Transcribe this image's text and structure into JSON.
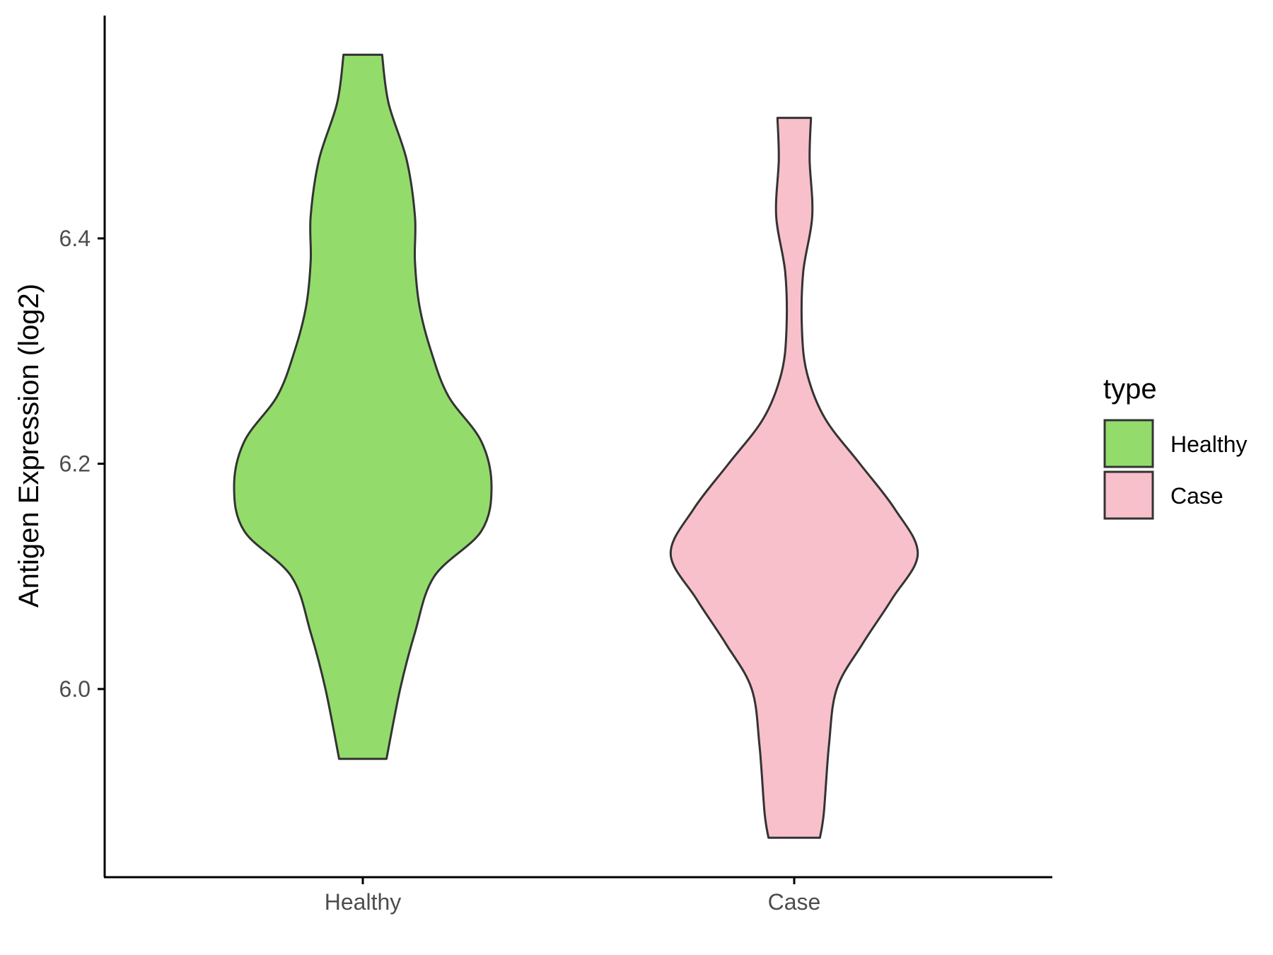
{
  "chart_data": {
    "type": "violin",
    "categories": [
      "Healthy",
      "Case"
    ],
    "ylabel": "Antigen Expression (log2)",
    "xlabel": "",
    "y_ticks": [
      6.0,
      6.2,
      6.4
    ],
    "ylim": [
      5.83,
      6.6
    ],
    "grid": false,
    "legend": {
      "title": "type",
      "position": "right",
      "entries": [
        "Healthy",
        "Case"
      ]
    },
    "colors": {
      "Healthy": "#93dc6b",
      "Case": "#f8c0cb",
      "outline": "#333333"
    },
    "series": [
      {
        "name": "Healthy",
        "min": 5.938,
        "max": 6.563,
        "density": [
          [
            5.938,
            0.184
          ],
          [
            6.0,
            0.29
          ],
          [
            6.05,
            0.405
          ],
          [
            6.1,
            0.555
          ],
          [
            6.14,
            0.92
          ],
          [
            6.18,
            1.0
          ],
          [
            6.22,
            0.92
          ],
          [
            6.26,
            0.665
          ],
          [
            6.3,
            0.53
          ],
          [
            6.34,
            0.44
          ],
          [
            6.38,
            0.405
          ],
          [
            6.42,
            0.405
          ],
          [
            6.47,
            0.34
          ],
          [
            6.52,
            0.2
          ],
          [
            6.563,
            0.15
          ]
        ]
      },
      {
        "name": "Case",
        "min": 5.868,
        "max": 6.507,
        "density": [
          [
            5.868,
            0.2
          ],
          [
            5.89,
            0.23
          ],
          [
            5.95,
            0.27
          ],
          [
            6.0,
            0.33
          ],
          [
            6.04,
            0.53
          ],
          [
            6.08,
            0.76
          ],
          [
            6.12,
            0.96
          ],
          [
            6.16,
            0.78
          ],
          [
            6.2,
            0.51
          ],
          [
            6.24,
            0.24
          ],
          [
            6.28,
            0.1
          ],
          [
            6.32,
            0.06
          ],
          [
            6.37,
            0.07
          ],
          [
            6.42,
            0.14
          ],
          [
            6.47,
            0.12
          ],
          [
            6.507,
            0.13
          ]
        ]
      }
    ]
  }
}
